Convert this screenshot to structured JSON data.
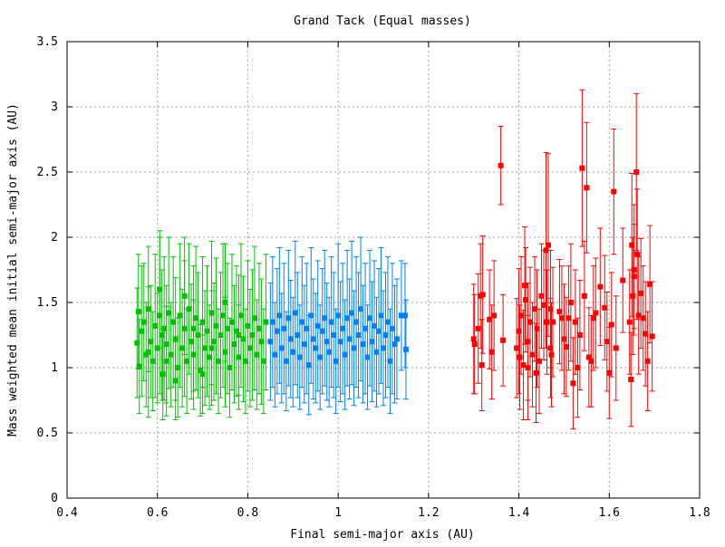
{
  "chart_data": {
    "type": "scatter",
    "title": "Grand Tack (Equal masses)",
    "xlabel": "Final semi-major axis (AU)",
    "ylabel": "Mass weighted mean initial semi-major axis (AU)",
    "xlim": [
      0.4,
      1.8
    ],
    "ylim": [
      0,
      3.5
    ],
    "x_ticks": [
      "0.4",
      "0.6",
      "0.8",
      "1",
      "1.2",
      "1.4",
      "1.6",
      "1.8"
    ],
    "y_ticks": [
      "0",
      "0.5",
      "1",
      "1.5",
      "2",
      "2.5",
      "3",
      "3.5"
    ],
    "grid": true,
    "legend": "none",
    "error_bars": true,
    "colors": {
      "green": "#00c000",
      "blue": "#0080ff",
      "red": "#ff0000",
      "grid": "#a0a0a0",
      "axes": "#000000"
    },
    "series": [
      {
        "color": "#00c000",
        "points": [
          [
            0.555,
            1.19,
            0.42
          ],
          [
            0.558,
            1.43,
            0.44
          ],
          [
            0.56,
            1.01,
            0.36
          ],
          [
            0.565,
            1.28,
            0.5
          ],
          [
            0.57,
            1.35,
            0.45
          ],
          [
            0.575,
            1.1,
            0.4
          ],
          [
            0.58,
            1.45,
            0.48
          ],
          [
            0.585,
            1.2,
            0.43
          ],
          [
            0.59,
            1.05,
            0.38
          ],
          [
            0.595,
            1.32,
            0.55
          ],
          [
            0.6,
            1.15,
            0.42
          ],
          [
            0.605,
            1.4,
            0.6
          ],
          [
            0.61,
            1.25,
            0.5
          ],
          [
            0.612,
            0.95,
            0.35
          ],
          [
            0.615,
            1.3,
            0.55
          ],
          [
            0.62,
            1.18,
            0.45
          ],
          [
            0.625,
            1.42,
            0.58
          ],
          [
            0.63,
            1.1,
            0.4
          ],
          [
            0.635,
            1.35,
            0.5
          ],
          [
            0.64,
            1.22,
            0.47
          ],
          [
            0.645,
            1.0,
            0.38
          ],
          [
            0.65,
            1.4,
            0.55
          ],
          [
            0.655,
            1.15,
            0.45
          ],
          [
            0.66,
            1.3,
            0.52
          ],
          [
            0.665,
            1.05,
            0.4
          ],
          [
            0.67,
            1.45,
            0.5
          ],
          [
            0.675,
            1.2,
            0.44
          ],
          [
            0.68,
            1.1,
            0.42
          ],
          [
            0.685,
            1.38,
            0.55
          ],
          [
            0.69,
            1.25,
            0.48
          ],
          [
            0.695,
            0.98,
            0.35
          ],
          [
            0.7,
            1.35,
            0.5
          ],
          [
            0.705,
            1.15,
            0.44
          ],
          [
            0.71,
            1.28,
            0.5
          ],
          [
            0.715,
            1.08,
            0.4
          ],
          [
            0.72,
            1.42,
            0.55
          ],
          [
            0.725,
            1.2,
            0.45
          ],
          [
            0.73,
            1.32,
            0.52
          ],
          [
            0.735,
            1.05,
            0.4
          ],
          [
            0.74,
            1.25,
            0.48
          ],
          [
            0.745,
            1.4,
            0.55
          ],
          [
            0.75,
            1.12,
            0.42
          ],
          [
            0.755,
            1.3,
            0.5
          ],
          [
            0.76,
            1.0,
            0.38
          ],
          [
            0.765,
            1.35,
            0.52
          ],
          [
            0.77,
            1.18,
            0.45
          ],
          [
            0.775,
            1.28,
            0.5
          ],
          [
            0.78,
            1.08,
            0.4
          ],
          [
            0.785,
            1.4,
            0.55
          ],
          [
            0.79,
            1.22,
            0.48
          ],
          [
            0.795,
            1.05,
            0.4
          ],
          [
            0.8,
            1.32,
            0.5
          ],
          [
            0.805,
            1.15,
            0.45
          ],
          [
            0.81,
            1.25,
            0.5
          ],
          [
            0.815,
            1.38,
            0.55
          ],
          [
            0.82,
            1.1,
            0.42
          ],
          [
            0.825,
            1.3,
            0.5
          ],
          [
            0.83,
            1.2,
            0.48
          ],
          [
            0.835,
            1.05,
            0.4
          ],
          [
            0.84,
            1.35,
            0.52
          ],
          [
            0.605,
            1.6,
            0.45
          ],
          [
            0.64,
            0.9,
            0.3
          ],
          [
            0.66,
            1.55,
            0.45
          ],
          [
            0.7,
            0.95,
            0.3
          ],
          [
            0.75,
            1.5,
            0.45
          ],
          [
            0.58,
            1.12,
            0.5
          ],
          [
            0.62,
            1.05,
            0.42
          ],
          [
            0.68,
            1.3,
            0.48
          ],
          [
            0.72,
            1.15,
            0.44
          ],
          [
            0.78,
            1.25,
            0.46
          ]
        ]
      },
      {
        "color": "#0080ff",
        "points": [
          [
            0.85,
            1.2,
            0.45
          ],
          [
            0.855,
            1.35,
            0.5
          ],
          [
            0.86,
            1.1,
            0.4
          ],
          [
            0.865,
            1.28,
            0.48
          ],
          [
            0.87,
            1.4,
            0.52
          ],
          [
            0.875,
            1.15,
            0.42
          ],
          [
            0.88,
            1.3,
            0.5
          ],
          [
            0.885,
            1.05,
            0.38
          ],
          [
            0.89,
            1.38,
            0.52
          ],
          [
            0.895,
            1.22,
            0.45
          ],
          [
            0.9,
            1.12,
            0.42
          ],
          [
            0.905,
            1.42,
            0.55
          ],
          [
            0.91,
            1.25,
            0.48
          ],
          [
            0.915,
            1.08,
            0.4
          ],
          [
            0.92,
            1.35,
            0.5
          ],
          [
            0.925,
            1.18,
            0.45
          ],
          [
            0.93,
            1.3,
            0.5
          ],
          [
            0.935,
            1.02,
            0.38
          ],
          [
            0.94,
            1.4,
            0.52
          ],
          [
            0.945,
            1.22,
            0.46
          ],
          [
            0.95,
            1.15,
            0.42
          ],
          [
            0.955,
            1.32,
            0.5
          ],
          [
            0.96,
            1.08,
            0.4
          ],
          [
            0.965,
            1.28,
            0.48
          ],
          [
            0.97,
            1.38,
            0.52
          ],
          [
            0.975,
            1.2,
            0.45
          ],
          [
            0.98,
            1.12,
            0.42
          ],
          [
            0.985,
            1.35,
            0.5
          ],
          [
            0.99,
            1.25,
            0.48
          ],
          [
            0.995,
            1.05,
            0.4
          ],
          [
            1.0,
            1.4,
            0.55
          ],
          [
            1.005,
            1.2,
            0.46
          ],
          [
            1.01,
            1.3,
            0.5
          ],
          [
            1.015,
            1.1,
            0.42
          ],
          [
            1.02,
            1.38,
            0.52
          ],
          [
            1.025,
            1.22,
            0.46
          ],
          [
            1.03,
            1.42,
            0.55
          ],
          [
            1.035,
            1.15,
            0.44
          ],
          [
            1.04,
            1.35,
            0.5
          ],
          [
            1.045,
            1.25,
            0.48
          ],
          [
            1.05,
            1.45,
            0.55
          ],
          [
            1.055,
            1.18,
            0.45
          ],
          [
            1.06,
            1.3,
            0.5
          ],
          [
            1.065,
            1.08,
            0.4
          ],
          [
            1.07,
            1.38,
            0.52
          ],
          [
            1.075,
            1.2,
            0.46
          ],
          [
            1.08,
            1.32,
            0.5
          ],
          [
            1.085,
            1.12,
            0.42
          ],
          [
            1.09,
            1.28,
            0.48
          ],
          [
            1.095,
            1.4,
            0.52
          ],
          [
            1.1,
            1.15,
            0.44
          ],
          [
            1.105,
            1.25,
            0.48
          ],
          [
            1.11,
            1.35,
            0.5
          ],
          [
            1.115,
            1.05,
            0.4
          ],
          [
            1.12,
            1.3,
            0.5
          ],
          [
            1.125,
            1.18,
            0.45
          ],
          [
            1.13,
            1.22,
            0.46
          ],
          [
            1.14,
            1.4,
            0.42
          ],
          [
            1.15,
            1.14,
            0.38
          ],
          [
            1.148,
            1.4,
            0.4
          ]
        ]
      },
      {
        "color": "#ff0000",
        "points": [
          [
            1.3,
            1.22,
            0.42
          ],
          [
            1.302,
            1.18,
            0.38
          ],
          [
            1.31,
            1.3,
            0.42
          ],
          [
            1.315,
            1.55,
            0.4
          ],
          [
            1.318,
            1.02,
            0.35
          ],
          [
            1.32,
            1.56,
            0.45
          ],
          [
            1.335,
            1.37,
            0.38
          ],
          [
            1.34,
            1.12,
            0.36
          ],
          [
            1.345,
            1.4,
            0.42
          ],
          [
            1.36,
            2.55,
            0.3
          ],
          [
            1.365,
            1.21,
            0.35
          ],
          [
            1.395,
            1.15,
            0.38
          ],
          [
            1.4,
            1.28,
            0.48
          ],
          [
            1.402,
            1.08,
            0.4
          ],
          [
            1.405,
            1.4,
            0.45
          ],
          [
            1.41,
            1.02,
            0.42
          ],
          [
            1.413,
            1.63,
            0.45
          ],
          [
            1.415,
            1.52,
            0.4
          ],
          [
            1.42,
            1.2,
            0.45
          ],
          [
            1.425,
            1.35,
            0.42
          ],
          [
            1.43,
            1.1,
            0.4
          ],
          [
            1.435,
            1.45,
            0.4
          ],
          [
            1.438,
            0.96,
            0.38
          ],
          [
            1.44,
            1.3,
            0.45
          ],
          [
            1.445,
            1.05,
            0.4
          ],
          [
            1.45,
            1.55,
            0.4
          ],
          [
            1.455,
            1.48,
            0.42
          ],
          [
            1.46,
            1.9,
            0.75
          ],
          [
            1.462,
            1.35,
            0.4
          ],
          [
            1.465,
            1.94,
            0.7
          ],
          [
            1.47,
            1.45,
            0.45
          ],
          [
            1.472,
            1.1,
            0.4
          ],
          [
            1.475,
            1.35,
            0.42
          ],
          [
            1.49,
            1.43,
            0.4
          ],
          [
            1.495,
            1.38,
            0.4
          ],
          [
            1.5,
            1.22,
            0.42
          ],
          [
            1.505,
            1.16,
            0.38
          ],
          [
            1.51,
            1.38,
            0.4
          ],
          [
            1.515,
            1.5,
            0.45
          ],
          [
            1.52,
            0.88,
            0.35
          ],
          [
            1.525,
            1.35,
            0.4
          ],
          [
            1.53,
            1.0,
            0.38
          ],
          [
            1.535,
            1.25,
            0.42
          ],
          [
            1.54,
            2.53,
            0.6
          ],
          [
            1.545,
            1.55,
            0.42
          ],
          [
            1.55,
            2.38,
            0.5
          ],
          [
            1.555,
            1.08,
            0.38
          ],
          [
            1.56,
            1.05,
            0.35
          ],
          [
            1.565,
            1.38,
            0.4
          ],
          [
            1.57,
            1.42,
            0.42
          ],
          [
            1.58,
            1.62,
            0.45
          ],
          [
            1.59,
            1.46,
            0.4
          ],
          [
            1.595,
            1.2,
            0.38
          ],
          [
            1.6,
            0.96,
            0.35
          ],
          [
            1.605,
            1.33,
            0.4
          ],
          [
            1.61,
            2.35,
            0.48
          ],
          [
            1.615,
            1.15,
            0.4
          ],
          [
            1.63,
            1.67,
            0.4
          ],
          [
            1.645,
            1.35,
            0.4
          ],
          [
            1.648,
            0.91,
            0.36
          ],
          [
            1.65,
            1.94,
            0.55
          ],
          [
            1.652,
            1.55,
            0.45
          ],
          [
            1.655,
            1.75,
            0.5
          ],
          [
            1.66,
            2.5,
            0.6
          ],
          [
            1.662,
            1.87,
            0.5
          ],
          [
            1.665,
            1.4,
            0.45
          ],
          [
            1.67,
            1.57,
            0.42
          ],
          [
            1.675,
            1.38,
            0.4
          ],
          [
            1.68,
            1.26,
            0.4
          ],
          [
            1.685,
            1.05,
            0.38
          ],
          [
            1.69,
            1.64,
            0.45
          ],
          [
            1.695,
            1.24,
            0.42
          ],
          [
            1.655,
            1.7,
            0.4
          ],
          [
            1.42,
            1.0,
            0.4
          ],
          [
            1.47,
            1.15,
            0.38
          ]
        ]
      }
    ]
  }
}
